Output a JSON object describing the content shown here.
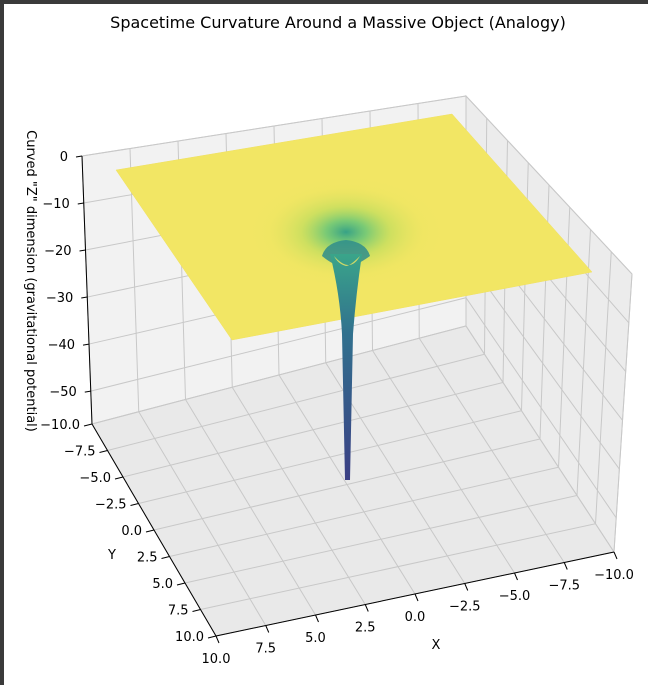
{
  "chart_data": {
    "type": "surface3d",
    "title": "Spacetime Curvature Around a Massive Object (Analogy)",
    "xlabel": "X",
    "ylabel": "Y",
    "zlabel": "Curved \"Z\" dimension (gravitational potential)",
    "x_ticks": [
      "10.0",
      "7.5",
      "5.0",
      "2.5",
      "0.0",
      "−2.5",
      "−5.0",
      "−7.5",
      "−10.0"
    ],
    "y_ticks": [
      "−10.0",
      "−7.5",
      "−5.0",
      "−2.5",
      "0.0",
      "2.5",
      "5.0",
      "7.5",
      "10.0"
    ],
    "z_ticks": [
      "0",
      "−10",
      "−20",
      "−30",
      "−40",
      "−50"
    ],
    "xlim": [
      -10,
      10
    ],
    "ylim": [
      -10,
      10
    ],
    "zlim": [
      -57,
      0
    ],
    "surface_min": -57,
    "colormap": "viridis",
    "colors": {
      "plane": "#f2e664",
      "well_mid": "#3aa58a",
      "well_deep": "#3b3f84",
      "pane": "#f2f2f2",
      "grid": "#c8c8c8"
    },
    "grid": true
  }
}
